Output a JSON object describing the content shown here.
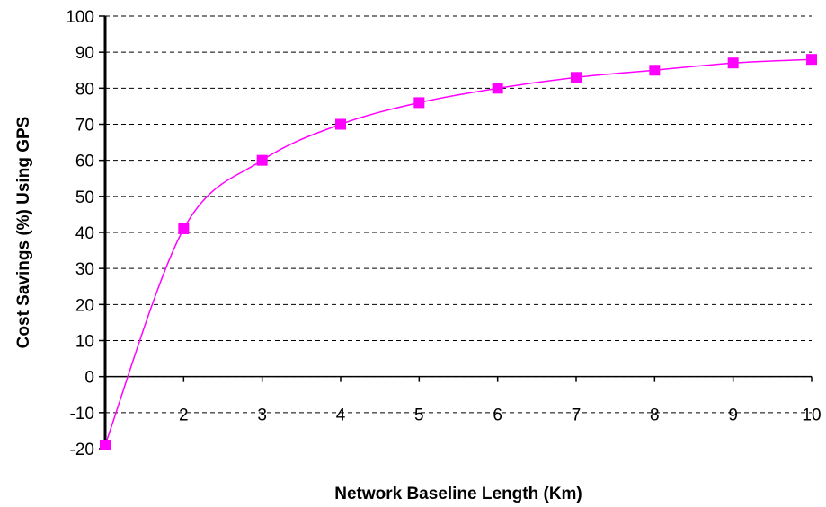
{
  "chart_data": {
    "type": "line",
    "title": "",
    "xlabel": "Network Baseline Length (Km)",
    "ylabel": "Cost Savings (%) Using GPS",
    "x": [
      1,
      2,
      3,
      4,
      5,
      6,
      7,
      8,
      9,
      10
    ],
    "xlim": [
      1,
      10
    ],
    "ylim": [
      -20,
      100
    ],
    "x_ticks": [
      "2",
      "3",
      "4",
      "5",
      "6",
      "7",
      "8",
      "9",
      "10"
    ],
    "y_ticks": [
      "-20",
      "-10",
      "0",
      "10",
      "20",
      "30",
      "40",
      "50",
      "60",
      "70",
      "80",
      "90",
      "100"
    ],
    "series": [
      {
        "values": [
          -19,
          41,
          60,
          70,
          76,
          80,
          83,
          85,
          87,
          88
        ],
        "color": "#ff00ff",
        "marker": "square"
      }
    ],
    "grid": "horizontal dashed",
    "legend": "none"
  }
}
